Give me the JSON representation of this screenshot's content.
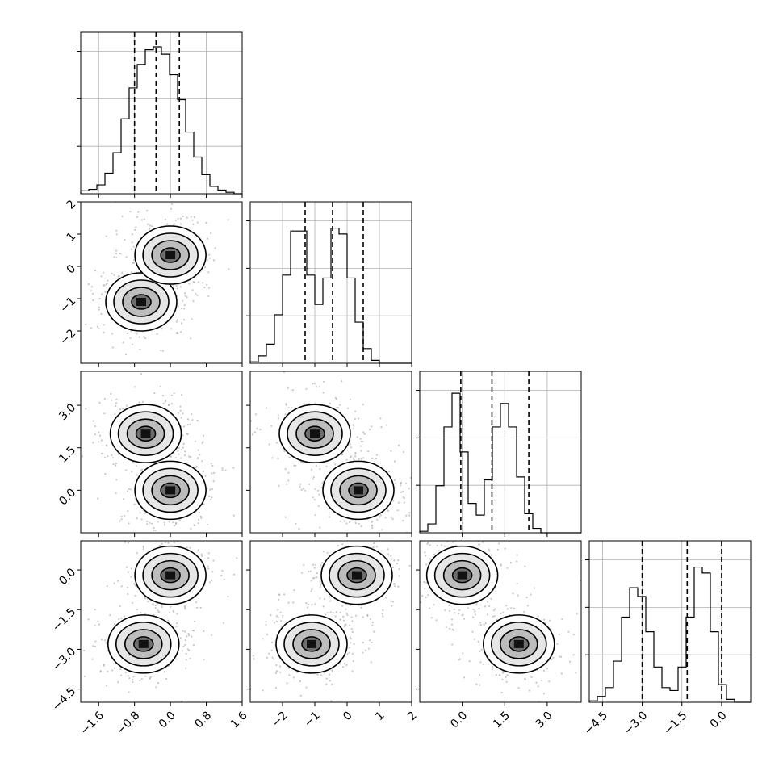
{
  "chart_data": {
    "type": "corner",
    "title": "",
    "parameters": 4,
    "quantile_lines": "dashed",
    "grid": true,
    "histograms": [
      {
        "range": [
          -2.0,
          1.6
        ],
        "quantiles": [
          -0.8,
          -0.32,
          0.2
        ],
        "counts": [
          0.02,
          0.03,
          0.06,
          0.14,
          0.28,
          0.51,
          0.72,
          0.88,
          0.98,
          1.0,
          0.95,
          0.81,
          0.64,
          0.42,
          0.25,
          0.13,
          0.05,
          0.025,
          0.01,
          0.0
        ]
      },
      {
        "range": [
          -3.0,
          2.0
        ],
        "quantiles": [
          -1.3,
          -0.45,
          0.5
        ],
        "counts": [
          0.01,
          0.05,
          0.13,
          0.33,
          0.6,
          0.9,
          0.9,
          0.6,
          0.4,
          0.58,
          0.92,
          0.88,
          0.58,
          0.28,
          0.1,
          0.02,
          0.0,
          0.0,
          0.0,
          0.0
        ]
      },
      {
        "range": [
          -1.5,
          4.2
        ],
        "quantiles": [
          -0.05,
          1.05,
          2.35
        ],
        "counts": [
          0.01,
          0.06,
          0.32,
          0.72,
          0.95,
          0.55,
          0.2,
          0.12,
          0.36,
          0.72,
          0.88,
          0.72,
          0.38,
          0.13,
          0.03,
          0.0,
          0.0,
          0.0,
          0.0,
          0.0
        ]
      },
      {
        "range": [
          -5.0,
          1.1
        ],
        "quantiles": [
          -3.0,
          -1.3,
          0.0
        ],
        "counts": [
          0.01,
          0.04,
          0.1,
          0.28,
          0.58,
          0.78,
          0.72,
          0.48,
          0.24,
          0.1,
          0.08,
          0.24,
          0.58,
          0.92,
          0.88,
          0.48,
          0.12,
          0.02,
          0.0,
          0.0
        ]
      }
    ],
    "axes": {
      "x_ranges": [
        [
          -2.0,
          1.6
        ],
        [
          -3.0,
          2.0
        ],
        [
          -1.5,
          4.2
        ],
        [
          -5.0,
          1.1
        ]
      ],
      "y_ranges": [
        null,
        [
          -3.0,
          2.0
        ],
        [
          -1.5,
          4.2
        ],
        [
          -5.0,
          1.1
        ]
      ],
      "x_ticks": [
        [
          "-1.6",
          "-0.8",
          "0.0",
          "0.8",
          "1.6"
        ],
        [
          "-2",
          "-1",
          "0",
          "1",
          "2"
        ],
        [
          "0.0",
          "1.5",
          "3.0"
        ],
        [
          "-4.5",
          "-3.0",
          "-1.5",
          "0.0"
        ]
      ],
      "y_ticks": [
        [],
        [
          "-2",
          "-1",
          "0",
          "1",
          "2"
        ],
        [
          "0.0",
          "1.5",
          "3.0"
        ],
        [
          "-4.5",
          "-3.0",
          "-1.5",
          "0.0"
        ]
      ]
    },
    "contour_panels": [
      {
        "row": 1,
        "col": 0,
        "clusters": [
          [
            -0.65,
            -1.1,
            1.0
          ],
          [
            0.0,
            0.35,
            1.0
          ]
        ]
      },
      {
        "row": 2,
        "col": 0,
        "clusters": [
          [
            -0.55,
            2.0,
            1.0
          ],
          [
            0.0,
            0.0,
            1.0
          ]
        ]
      },
      {
        "row": 2,
        "col": 1,
        "clusters": [
          [
            -1.0,
            2.0,
            1.0
          ],
          [
            0.35,
            0.0,
            1.0
          ]
        ]
      },
      {
        "row": 3,
        "col": 0,
        "clusters": [
          [
            0.0,
            -0.2,
            1.0
          ],
          [
            -0.6,
            -2.8,
            1.0
          ]
        ]
      },
      {
        "row": 3,
        "col": 1,
        "clusters": [
          [
            0.3,
            -0.2,
            1.0
          ],
          [
            -1.1,
            -2.8,
            1.0
          ]
        ]
      },
      {
        "row": 3,
        "col": 2,
        "clusters": [
          [
            0.0,
            -0.2,
            1.0
          ],
          [
            2.0,
            -2.8,
            1.0
          ]
        ]
      }
    ]
  }
}
